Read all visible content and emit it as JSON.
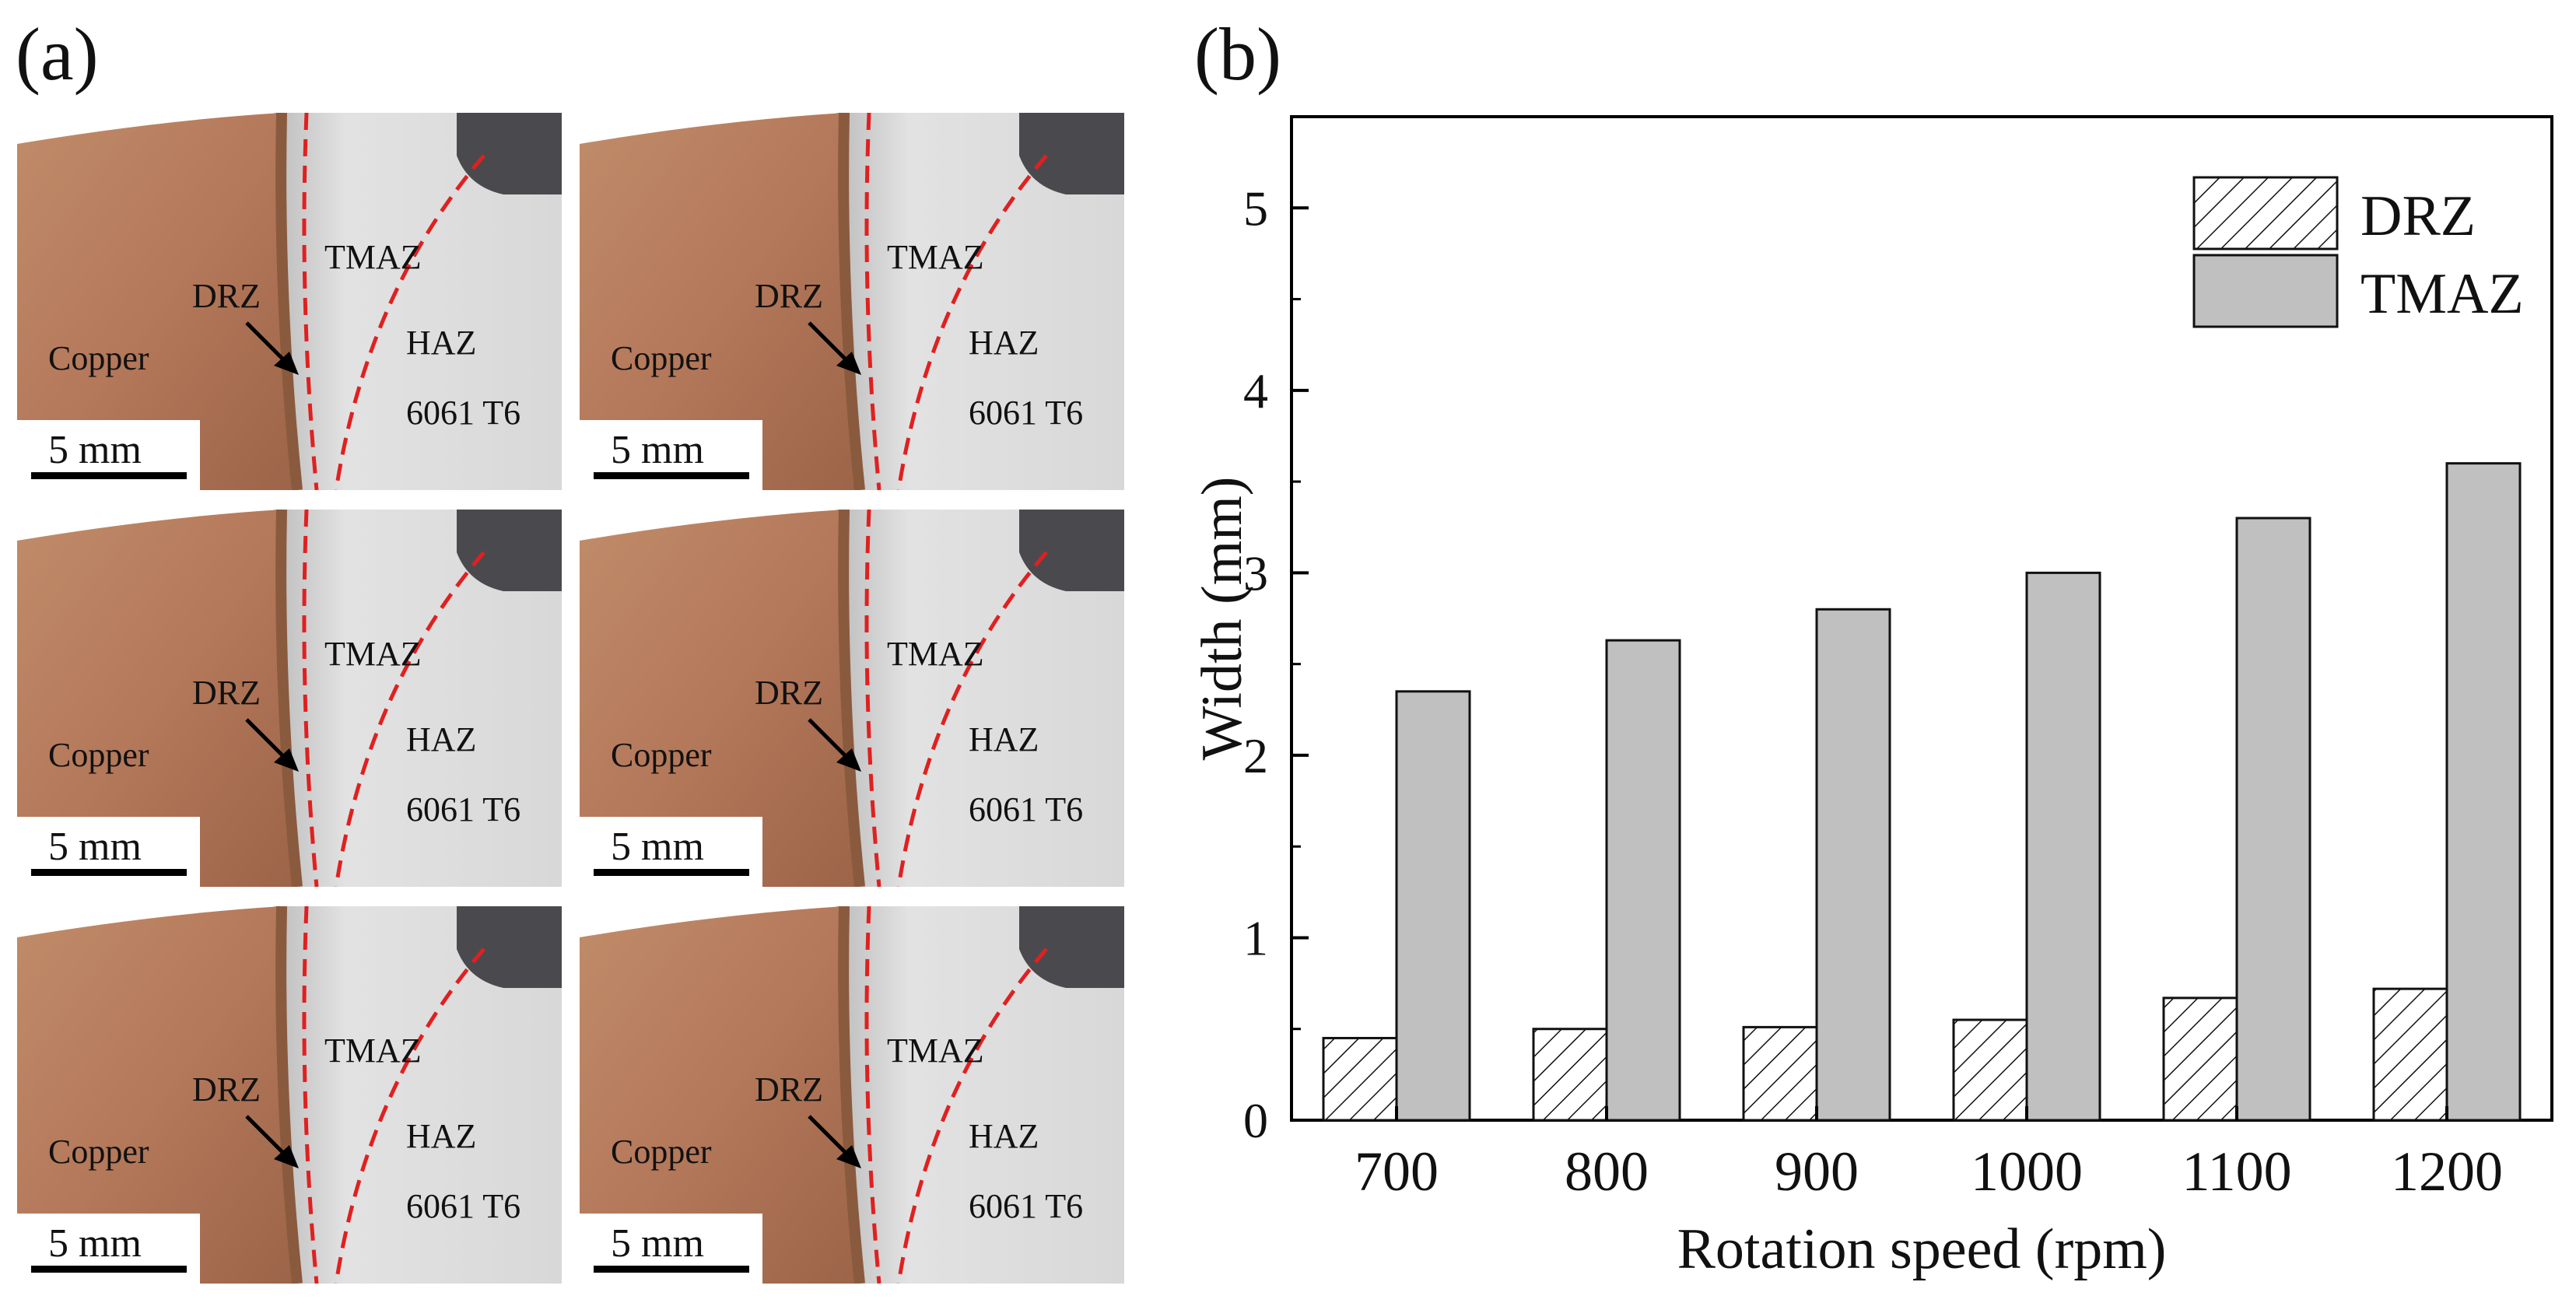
{
  "panel_a": {
    "label": "(a)",
    "micrographs": [
      {
        "zones": {
          "drz": "DRZ",
          "tmaz": "TMAZ",
          "haz": "HAZ"
        },
        "material_left": "Copper",
        "material_right": "6061 T6",
        "scale_bar": "5 mm"
      },
      {
        "zones": {
          "drz": "DRZ",
          "tmaz": "TMAZ",
          "haz": "HAZ"
        },
        "material_left": "Copper",
        "material_right": "6061 T6",
        "scale_bar": "5 mm"
      },
      {
        "zones": {
          "drz": "DRZ",
          "tmaz": "TMAZ",
          "haz": "HAZ"
        },
        "material_left": "Copper",
        "material_right": "6061 T6",
        "scale_bar": "5 mm"
      },
      {
        "zones": {
          "drz": "DRZ",
          "tmaz": "TMAZ",
          "haz": "HAZ"
        },
        "material_left": "Copper",
        "material_right": "6061 T6",
        "scale_bar": "5 mm"
      },
      {
        "zones": {
          "drz": "DRZ",
          "tmaz": "TMAZ",
          "haz": "HAZ"
        },
        "material_left": "Copper",
        "material_right": "6061 T6",
        "scale_bar": "5 mm"
      },
      {
        "zones": {
          "drz": "DRZ",
          "tmaz": "TMAZ",
          "haz": "HAZ"
        },
        "material_left": "Copper",
        "material_right": "6061 T6",
        "scale_bar": "5 mm"
      }
    ]
  },
  "panel_b": {
    "label": "(b)"
  },
  "colors": {
    "copper": "#b9805f",
    "copper_dark": "#8a5a3e",
    "aluminum": "#dcdcdc",
    "boundary": "#e02020",
    "tmaz_bar": "#c0c0c0",
    "background_mount": "#4a4a4e"
  },
  "chart_data": {
    "type": "bar",
    "title": "",
    "xlabel": "Rotation speed (rpm)",
    "ylabel": "Width (mm)",
    "categories": [
      "700",
      "800",
      "900",
      "1000",
      "1100",
      "1200"
    ],
    "ylim": [
      0,
      5.5
    ],
    "yticks": [
      0,
      1,
      2,
      3,
      4,
      5
    ],
    "series": [
      {
        "name": "DRZ",
        "pattern": "hatched",
        "values": [
          0.45,
          0.5,
          0.51,
          0.55,
          0.67,
          0.72
        ]
      },
      {
        "name": "TMAZ",
        "pattern": "gray",
        "values": [
          2.35,
          2.63,
          2.8,
          3.0,
          3.3,
          3.6
        ]
      }
    ],
    "legend_position": "top-right"
  }
}
